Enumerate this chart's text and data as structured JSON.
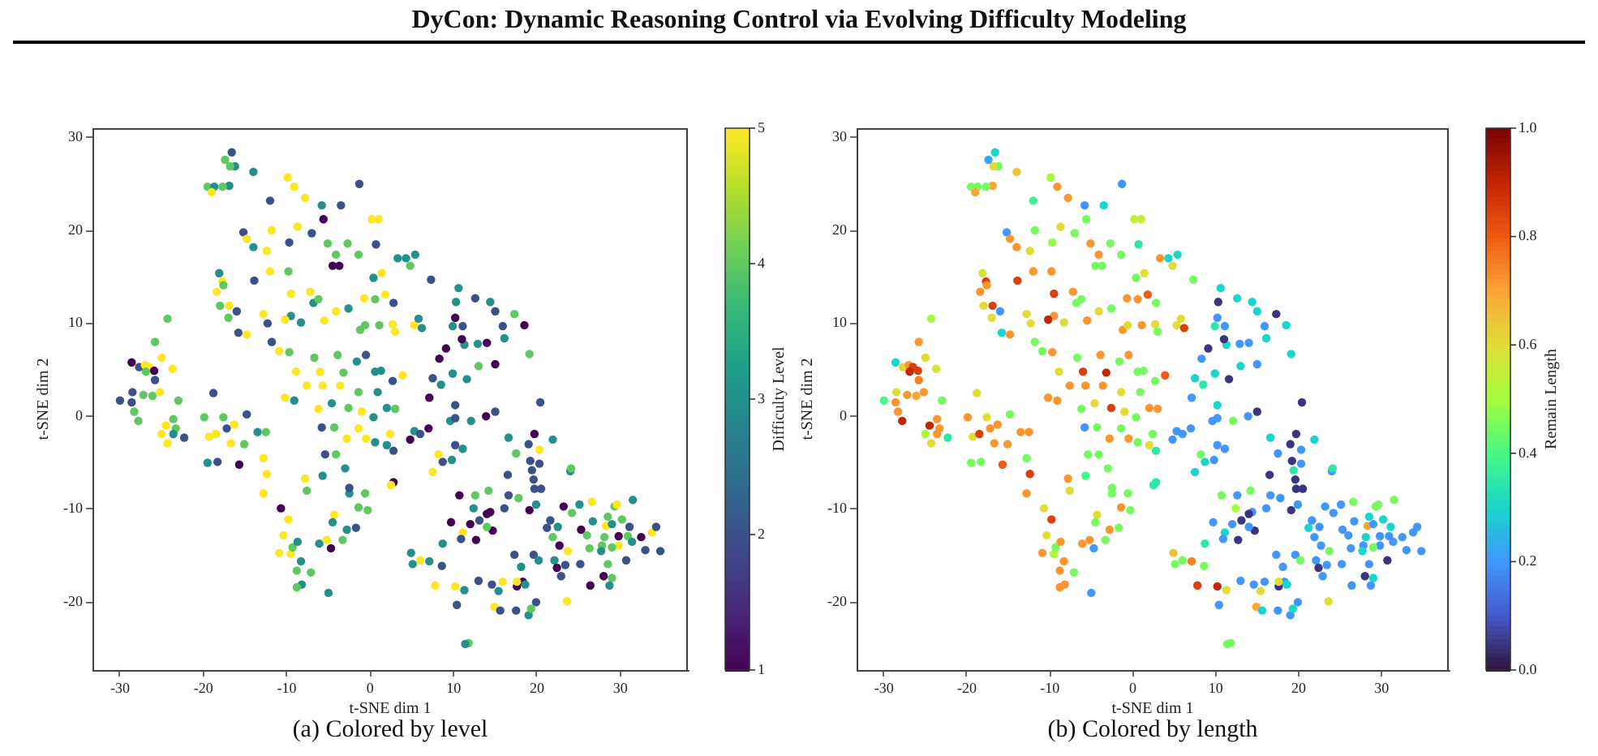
{
  "chart_data": [
    {
      "type": "scatter",
      "title": "DyCon: Dynamic Reasoning Control via Evolving Difficulty Modeling",
      "xlabel": "t-SNE dim 1",
      "ylabel": "t-SNE dim 2",
      "clabel": "Difficulty Level",
      "annotations": [
        "(a) Colored by level"
      ],
      "marker": "circle",
      "xlim": [
        -33.3,
        38.1
      ],
      "ylim": [
        -27.3,
        31.0
      ],
      "xticks": [
        -30,
        -20,
        -10,
        0,
        10,
        20,
        30
      ],
      "yticks": [
        -20,
        -10,
        0,
        10,
        20,
        30
      ],
      "clim": [
        1,
        5
      ],
      "cticks": [
        1,
        2,
        3,
        4,
        5
      ],
      "x": [
        -30.0,
        -28.6,
        -28.5,
        -28.6,
        -28.3,
        -27.7,
        -27.0,
        -26.5,
        -26.9,
        -25.9,
        -25.8,
        -27.8,
        -27.2,
        -26.1,
        -25.8,
        -25.0,
        -25.2,
        -24.3,
        -23.7,
        -23.0,
        -24.5,
        -25.0,
        -24.3,
        -23.6,
        -23.3,
        -22.3,
        -23.6,
        -16.6,
        -17.4,
        -16.2,
        -16.8,
        -14.0,
        -19.5,
        -18.7,
        -19.0,
        -16.9,
        -17.7,
        -12.0,
        -9.9,
        -7.8,
        -9.1,
        -1.3,
        -5.8,
        -3.5,
        -15.2,
        -14.8,
        -14.0,
        -11.8,
        -12.4,
        -12.0,
        -13.9,
        -18.1,
        -17.7,
        -18.4,
        -17.6,
        -18.0,
        -16.0,
        -16.9,
        -17.0,
        -15.8,
        -14.8,
        -12.3,
        -12.8,
        -8.7,
        -7.0,
        -5.6,
        0.2,
        1.0,
        -9.7,
        -5.1,
        -2.7,
        -4.1,
        -1.4,
        -4.5,
        -3.7,
        0.4,
        1.4,
        3.3,
        4.3,
        5.4,
        4.8,
        0.7,
        -9.8,
        -9.5,
        -7.2,
        -6.8,
        -6.2,
        -5.5,
        -4.1,
        -2.6,
        -0.7,
        0.6,
        1.8,
        2.8,
        -9.5,
        -8.3,
        -10.2,
        -1.2,
        -0.6,
        1.1,
        2.7,
        3.0,
        -10.9,
        -11.8,
        -9.7,
        -8.9,
        -6.7,
        -6.0,
        -3.9,
        -3.2,
        -1.6,
        -0.5,
        0.6,
        1.3,
        3.9,
        -10.2,
        -9.1,
        -7.6,
        -5.7,
        -3.6,
        -1.4,
        0.9,
        2.7,
        -6.2,
        -4.6,
        -2.6,
        -1.0,
        0.4,
        2.0,
        3.0,
        -19.9,
        -19.3,
        -19.5,
        -18.3,
        -18.8,
        -18.5,
        -17.6,
        -17.2,
        -16.3,
        -16.7,
        -15.7,
        -15.1,
        -14.8,
        -13.5,
        -12.5,
        -12.8,
        -12.4,
        -12.8,
        -10.7,
        -9.8,
        -10.4,
        -10.9,
        -9.5,
        -9.3,
        -8.7,
        -8.8,
        -8.2,
        -8.8,
        -7.1,
        -8.3,
        -5.8,
        -4.3,
        -2.8,
        -1.4,
        -0.5,
        0.6,
        2.4,
        2.0,
        2.8,
        -5.4,
        -4.1,
        -3.0,
        -5.7,
        -2.5,
        -2.5,
        -7.6,
        -7.8,
        -0.6,
        -1.4,
        -0.3,
        -4.3,
        -4.5,
        -2.8,
        -1.7,
        -6.1,
        -5.2,
        -4.7,
        -3.3,
        -5.0,
        2.8,
        2.5,
        5.3,
        5.8,
        6.2,
        7.3,
        10.6,
        10.3,
        9.9,
        11.1,
        10.2,
        12.6,
        11.3,
        11.0,
        12.9,
        14.0,
        14.4,
        15.0,
        15.9,
        16.1,
        17.3,
        18.5,
        19.1,
        15.0,
        13.0,
        9.9,
        11.6,
        8.3,
        9.1,
        7.5,
        7.1,
        8.5,
        10.2,
        9.6,
        10.2,
        12.1,
        13.9,
        15.0,
        20.4,
        5.3,
        7.0,
        6.0,
        4.8,
        10.2,
        11.1,
        8.2,
        8.7,
        9.8,
        7.5,
        16.6,
        19.7,
        19.0,
        20.3,
        21.9,
        17.5,
        19.2,
        20.3,
        16.5,
        19.4,
        19.6,
        19.7,
        20.5,
        24.0,
        24.1,
        10.7,
        12.6,
        14.2,
        16.6,
        17.8,
        12.4,
        14.4,
        16.1,
        19.1,
        19.9,
        9.7,
        12.0,
        13.1,
        14.0,
        14.7,
        11.1,
        14.0,
        10.9,
        12.7,
        8.7,
        8.6,
        7.8,
        6.0,
        4.9,
        5.1,
        7.1,
        10.2,
        10.4,
        11.3,
        13.0,
        14.6,
        14.9,
        15.4,
        15.9,
        15.6,
        11.8,
        11.4,
        17.3,
        18.1,
        17.6,
        18.3,
        17.6,
        18.6,
        17.5,
        19.0,
        19.3,
        19.9,
        19.6,
        20.2,
        21.2,
        21.6,
        21.9,
        22.5,
        22.1,
        22.4,
        22.9,
        23.4,
        22.7,
        23.7,
        23.2,
        24.2,
        25.3,
        25.1,
        26.0,
        26.6,
        26.7,
        26.4,
        25.2,
        23.6,
        27.8,
        27.7,
        28.1,
        28.3,
        28.5,
        29.0,
        29.3,
        29.6,
        30.2,
        31.1,
        29.8,
        30.9,
        31.4,
        29.8,
        29.0,
        28.5,
        30.7,
        29.0,
        28.0,
        28.7,
        31.5,
        32.5,
        33.8,
        34.3,
        33.0,
        34.8,
        26.3
      ],
      "values": [
        1.7,
        5.8,
        2.6,
        1.5,
        0.5,
        5.3,
        5.5,
        5.3,
        4.8,
        4.9,
        3.9,
        -0.5,
        2.3,
        2.2,
        8.0,
        6.3,
        2.6,
        10.5,
        5.1,
        1.7,
        -1.0,
        -1.9,
        -2.9,
        -0.3,
        -1.3,
        -2.3,
        -1.9,
        28.4,
        27.6,
        26.9,
        26.9,
        26.3,
        24.7,
        24.7,
        24.1,
        24.8,
        24.7,
        23.2,
        25.7,
        23.5,
        24.7,
        25.0,
        22.7,
        22.7,
        19.8,
        19.1,
        18.2,
        20.0,
        17.8,
        15.6,
        14.6,
        15.4,
        14.5,
        13.4,
        14.1,
        11.9,
        11.3,
        11.9,
        10.6,
        9.0,
        8.8,
        10.0,
        11.0,
        20.4,
        19.7,
        21.2,
        21.2,
        21.2,
        18.7,
        18.6,
        18.6,
        17.4,
        17.4,
        16.2,
        16.2,
        14.9,
        15.4,
        17.0,
        17.0,
        17.4,
        16.2,
        18.5,
        15.6,
        13.2,
        13.4,
        12.2,
        12.6,
        10.3,
        11.3,
        11.6,
        12.7,
        12.6,
        13.1,
        12.2,
        10.8,
        10.1,
        10.4,
        9.3,
        9.8,
        9.8,
        9.9,
        9.1,
        7.0,
        8.0,
        6.9,
        4.8,
        6.3,
        4.8,
        6.6,
        4.7,
        5.9,
        6.6,
        4.8,
        4.9,
        4.4,
        2.0,
        1.7,
        3.3,
        3.3,
        3.3,
        2.6,
        2.6,
        3.8,
        0.8,
        1.4,
        0.9,
        0.5,
        -0.1,
        0.9,
        0.8,
        -0.1,
        -2.2,
        -5.0,
        -4.9,
        2.5,
        -1.9,
        -0.1,
        -1.3,
        -0.9,
        -2.9,
        -5.2,
        -3.0,
        0.2,
        -1.7,
        -1.7,
        -4.5,
        -6.2,
        -8.3,
        -9.9,
        -11.1,
        -12.8,
        -14.7,
        -14.8,
        -14.1,
        -13.5,
        -16.6,
        -18.1,
        -18.4,
        -16.8,
        -15.6,
        -1.2,
        -1.2,
        -2.4,
        -1.3,
        -2.4,
        -2.8,
        -1.9,
        -3.1,
        -3.7,
        -4.1,
        -4.1,
        -5.6,
        -6.4,
        -8.3,
        -7.7,
        -8.0,
        -6.7,
        -8.3,
        -9.8,
        -10.1,
        -10.6,
        -11.4,
        -12.2,
        -12.0,
        -13.7,
        -13.3,
        -14.2,
        -13.3,
        -19.0,
        -7.1,
        -7.4,
        9.8,
        10.5,
        9.5,
        14.7,
        13.8,
        12.3,
        9.7,
        9.7,
        10.6,
        12.7,
        7.7,
        8.3,
        7.8,
        7.9,
        12.3,
        11.3,
        9.7,
        8.4,
        11.0,
        9.8,
        6.7,
        5.6,
        5.4,
        4.6,
        4.0,
        6.2,
        7.3,
        4.1,
        2.0,
        3.4,
        1.2,
        -0.5,
        -0.2,
        -0.5,
        0.0,
        0.5,
        1.5,
        -1.6,
        -1.3,
        -1.9,
        -2.5,
        -3.1,
        -3.5,
        -4.1,
        -4.9,
        -4.7,
        -6.0,
        -2.3,
        -1.9,
        -3.0,
        -3.6,
        -2.5,
        -4.0,
        -4.8,
        -5.1,
        -6.3,
        -5.8,
        -6.8,
        -7.8,
        -7.8,
        -5.9,
        -5.6,
        -8.5,
        -8.5,
        -8.0,
        -8.5,
        -8.8,
        -9.9,
        -10.3,
        -9.9,
        -10.1,
        -9.5,
        -11.4,
        -11.6,
        -11.2,
        -10.5,
        -12.3,
        -12.5,
        -11.9,
        -13.2,
        -13.3,
        -13.7,
        -16.1,
        -18.2,
        -15.5,
        -14.7,
        -15.9,
        -15.6,
        -18.3,
        -20.3,
        -18.7,
        -17.7,
        -18.1,
        -20.5,
        -18.8,
        -17.8,
        -20.9,
        -24.4,
        -24.5,
        -14.9,
        -16.2,
        -18.3,
        -17.8,
        -17.8,
        -18.1,
        -20.9,
        -21.4,
        -20.7,
        -20.0,
        -14.9,
        -15.5,
        -12.0,
        -11.2,
        -13.0,
        -11.9,
        -15.5,
        -16.3,
        -17.2,
        -16.0,
        -13.9,
        -14.5,
        -9.7,
        -10.4,
        -12.2,
        -9.5,
        -12.8,
        -9.2,
        -11.3,
        -18.2,
        -15.9,
        -19.9,
        -13.9,
        -14.5,
        -13.0,
        -11.8,
        -10.8,
        -11.6,
        -9.7,
        -9.5,
        -11.1,
        -11.9,
        -12.9,
        -12.9,
        -13.5,
        -13.9,
        -14.1,
        -15.9,
        -15.5,
        -17.4,
        -17.2,
        -18.2,
        -9.0,
        -13.0,
        -12.5,
        -11.9,
        -14.4,
        -14.5,
        -14.2
      ],
      "cvalues": [
        2,
        1,
        2,
        2,
        4,
        2,
        5,
        5,
        4,
        1,
        2,
        4,
        4,
        4,
        4,
        5,
        5,
        4,
        5,
        4,
        5,
        5,
        5,
        4,
        4,
        2,
        3,
        2,
        4,
        3,
        4,
        3,
        4,
        3,
        5,
        3,
        4,
        2,
        5,
        5,
        5,
        2,
        3,
        2,
        2,
        5,
        3,
        5,
        5,
        5,
        2,
        3,
        5,
        5,
        4,
        4,
        2,
        5,
        4,
        2,
        5,
        2,
        5,
        5,
        2,
        1,
        5,
        5,
        2,
        4,
        4,
        4,
        4,
        1,
        1,
        3,
        5,
        3,
        3,
        3,
        4,
        2,
        4,
        5,
        5,
        3,
        4,
        5,
        5,
        3,
        5,
        4,
        5,
        2,
        3,
        3,
        5,
        4,
        4,
        4,
        5,
        5,
        5,
        2,
        4,
        5,
        4,
        5,
        4,
        4,
        3,
        2,
        3,
        3,
        5,
        5,
        3,
        5,
        5,
        5,
        4,
        3,
        2,
        5,
        3,
        4,
        5,
        3,
        3,
        4,
        4,
        5,
        3,
        2,
        2,
        5,
        4,
        2,
        5,
        5,
        1,
        4,
        2,
        3,
        4,
        5,
        5,
        5,
        1,
        5,
        5,
        5,
        5,
        4,
        3,
        4,
        3,
        4,
        4,
        3,
        2,
        4,
        5,
        5,
        5,
        3,
        5,
        3,
        2,
        2,
        4,
        3,
        3,
        3,
        2,
        4,
        5,
        4,
        4,
        4,
        5,
        3,
        3,
        2,
        3,
        5,
        1,
        4,
        3,
        1,
        5,
        5,
        3,
        3,
        2,
        3,
        3,
        3,
        2,
        1,
        2,
        3,
        1,
        3,
        1,
        3,
        2,
        2,
        3,
        4,
        1,
        4,
        1,
        4,
        3,
        3,
        1,
        1,
        2,
        1,
        3,
        2,
        3,
        2,
        3,
        1,
        2,
        2,
        3,
        1,
        2,
        1,
        2,
        3,
        5,
        2,
        3,
        5,
        3,
        1,
        2,
        5,
        3,
        4,
        2,
        2,
        2,
        2,
        2,
        2,
        2,
        3,
        4,
        1,
        4,
        4,
        2,
        4,
        3,
        1,
        2,
        1,
        3,
        1,
        1,
        2,
        1,
        1,
        5,
        4,
        2,
        1,
        3,
        2,
        5,
        5,
        3,
        3,
        3,
        5,
        2,
        3,
        2,
        2,
        5,
        3,
        5,
        2,
        4,
        3,
        2,
        3,
        1,
        1,
        5,
        3,
        2,
        3,
        4,
        2,
        2,
        3,
        2,
        2,
        4,
        3,
        3,
        1,
        2,
        2,
        1,
        5,
        1,
        4,
        1,
        3,
        4,
        5,
        3,
        1,
        2,
        5,
        4,
        3,
        4,
        5,
        4,
        3,
        4,
        5,
        4,
        2,
        1,
        4,
        3,
        5,
        4,
        4,
        2,
        4,
        1,
        3,
        3,
        1,
        5,
        2,
        2,
        2,
        4
      ]
    },
    {
      "type": "scatter",
      "xlabel": "t-SNE dim 1",
      "ylabel": "t-SNE dim 2",
      "clabel": "Remain Length",
      "annotations": [
        "(b) Colored by length"
      ],
      "marker": "circle",
      "xlim": [
        -33.3,
        38.1
      ],
      "ylim": [
        -27.3,
        31.0
      ],
      "xticks": [
        -30,
        -20,
        -10,
        0,
        10,
        20,
        30
      ],
      "yticks": [
        -20,
        -10,
        0,
        10,
        20,
        30
      ],
      "clim": [
        0,
        1
      ],
      "cticks": [
        {
          "value": 0,
          "label": "0.0"
        },
        {
          "value": 0.2,
          "label": "0.2"
        },
        {
          "value": 0.4,
          "label": "0.4"
        },
        {
          "value": 0.6,
          "label": "0.6"
        },
        {
          "value": 0.8,
          "label": "0.8"
        },
        {
          "value": 1,
          "label": "1.0"
        }
      ],
      "x": [
        -30.0,
        -28.6,
        -28.5,
        -28.6,
        -28.3,
        -27.7,
        -27.0,
        -26.5,
        -26.9,
        -25.9,
        -25.8,
        -27.8,
        -27.2,
        -26.1,
        -25.8,
        -25.0,
        -25.2,
        -24.3,
        -23.7,
        -23.0,
        -24.5,
        -25.0,
        -24.3,
        -23.6,
        -23.3,
        -22.3,
        -23.6,
        -16.6,
        -17.4,
        -16.2,
        -16.8,
        -14.0,
        -19.5,
        -18.7,
        -19.0,
        -16.9,
        -17.7,
        -12.0,
        -9.9,
        -7.8,
        -9.1,
        -1.3,
        -5.8,
        -3.5,
        -15.2,
        -14.8,
        -14.0,
        -11.8,
        -12.4,
        -12.0,
        -13.9,
        -18.1,
        -17.7,
        -18.4,
        -17.6,
        -18.0,
        -16.0,
        -16.9,
        -17.0,
        -15.8,
        -14.8,
        -12.3,
        -12.8,
        -8.7,
        -7.0,
        -5.6,
        0.2,
        1.0,
        -9.7,
        -5.1,
        -2.7,
        -4.1,
        -1.4,
        -4.5,
        -3.7,
        0.4,
        1.4,
        3.3,
        4.3,
        5.4,
        4.8,
        0.7,
        -9.8,
        -9.5,
        -7.2,
        -6.8,
        -6.2,
        -5.5,
        -4.1,
        -2.6,
        -0.7,
        0.6,
        1.8,
        2.8,
        -9.5,
        -8.3,
        -10.2,
        -1.2,
        -0.6,
        1.1,
        2.7,
        3.0,
        -10.9,
        -11.8,
        -9.7,
        -8.9,
        -6.7,
        -6.0,
        -3.9,
        -3.2,
        -1.6,
        -0.5,
        0.6,
        1.3,
        3.9,
        -10.2,
        -9.1,
        -7.6,
        -5.7,
        -3.6,
        -1.4,
        0.9,
        2.7,
        -6.2,
        -4.6,
        -2.6,
        -1.0,
        0.4,
        2.0,
        3.0,
        -19.9,
        -19.3,
        -19.5,
        -18.3,
        -18.8,
        -18.5,
        -17.6,
        -17.2,
        -16.3,
        -16.7,
        -15.7,
        -15.1,
        -14.8,
        -13.5,
        -12.5,
        -12.8,
        -12.4,
        -12.8,
        -10.7,
        -9.8,
        -10.4,
        -10.9,
        -9.5,
        -9.3,
        -8.7,
        -8.8,
        -8.2,
        -8.8,
        -7.1,
        -8.3,
        -5.8,
        -4.3,
        -2.8,
        -1.4,
        -0.5,
        0.6,
        2.4,
        2.0,
        2.8,
        -5.4,
        -4.1,
        -3.0,
        -5.7,
        -2.5,
        -2.5,
        -7.6,
        -7.8,
        -0.6,
        -1.4,
        -0.3,
        -4.3,
        -4.5,
        -2.8,
        -1.7,
        -6.1,
        -5.2,
        -4.7,
        -3.3,
        -5.0,
        2.8,
        2.5,
        5.3,
        5.8,
        6.2,
        7.3,
        10.6,
        10.3,
        9.9,
        11.1,
        10.2,
        12.6,
        11.3,
        11.0,
        12.9,
        14.0,
        14.4,
        15.0,
        15.9,
        16.1,
        17.3,
        18.5,
        19.1,
        15.0,
        13.0,
        9.9,
        11.6,
        8.3,
        9.1,
        7.5,
        7.1,
        8.5,
        10.2,
        9.6,
        10.2,
        12.1,
        13.9,
        15.0,
        20.4,
        5.3,
        7.0,
        6.0,
        4.8,
        10.2,
        11.1,
        8.2,
        8.7,
        9.8,
        7.5,
        16.6,
        19.7,
        19.0,
        20.3,
        21.9,
        17.5,
        19.2,
        20.3,
        16.5,
        19.4,
        19.6,
        19.7,
        20.5,
        24.0,
        24.1,
        10.7,
        12.6,
        14.2,
        16.6,
        17.8,
        12.4,
        14.4,
        16.1,
        19.1,
        19.9,
        9.7,
        12.0,
        13.1,
        14.0,
        14.7,
        11.1,
        14.0,
        10.9,
        12.7,
        8.7,
        8.6,
        7.8,
        6.0,
        4.9,
        5.1,
        7.1,
        10.2,
        10.4,
        11.3,
        13.0,
        14.6,
        14.9,
        15.4,
        15.9,
        15.6,
        11.8,
        11.4,
        17.3,
        18.1,
        17.6,
        18.3,
        17.6,
        18.6,
        17.5,
        19.0,
        19.3,
        19.9,
        19.6,
        20.2,
        21.2,
        21.6,
        21.9,
        22.5,
        22.1,
        22.4,
        22.9,
        23.4,
        22.7,
        23.7,
        23.2,
        24.2,
        25.3,
        25.1,
        26.0,
        26.6,
        26.7,
        26.4,
        25.2,
        23.6,
        27.8,
        27.7,
        28.1,
        28.3,
        28.5,
        29.0,
        29.3,
        29.6,
        30.2,
        31.1,
        29.8,
        30.9,
        31.4,
        29.8,
        29.0,
        28.5,
        30.7,
        29.0,
        28.0,
        28.7,
        31.5,
        32.5,
        33.8,
        34.3,
        33.0,
        34.8,
        26.3
      ],
      "values": [
        1.7,
        5.8,
        2.6,
        1.5,
        0.5,
        5.3,
        5.5,
        5.3,
        4.8,
        4.9,
        3.9,
        -0.5,
        2.3,
        2.2,
        8.0,
        6.3,
        2.6,
        10.5,
        5.1,
        1.7,
        -1.0,
        -1.9,
        -2.9,
        -0.3,
        -1.3,
        -2.3,
        -1.9,
        28.4,
        27.6,
        26.9,
        26.9,
        26.3,
        24.7,
        24.7,
        24.1,
        24.8,
        24.7,
        23.2,
        25.7,
        23.5,
        24.7,
        25.0,
        22.7,
        22.7,
        19.8,
        19.1,
        18.2,
        20.0,
        17.8,
        15.6,
        14.6,
        15.4,
        14.5,
        13.4,
        14.1,
        11.9,
        11.3,
        11.9,
        10.6,
        9.0,
        8.8,
        10.0,
        11.0,
        20.4,
        19.7,
        21.2,
        21.2,
        21.2,
        18.7,
        18.6,
        18.6,
        17.4,
        17.4,
        16.2,
        16.2,
        14.9,
        15.4,
        17.0,
        17.0,
        17.4,
        16.2,
        18.5,
        15.6,
        13.2,
        13.4,
        12.2,
        12.6,
        10.3,
        11.3,
        11.6,
        12.7,
        12.6,
        13.1,
        12.2,
        10.8,
        10.1,
        10.4,
        9.3,
        9.8,
        9.8,
        9.9,
        9.1,
        7.0,
        8.0,
        6.9,
        4.8,
        6.3,
        4.8,
        6.6,
        4.7,
        5.9,
        6.6,
        4.8,
        4.9,
        4.4,
        2.0,
        1.7,
        3.3,
        3.3,
        3.3,
        2.6,
        2.6,
        3.8,
        0.8,
        1.4,
        0.9,
        0.5,
        -0.1,
        0.9,
        0.8,
        -0.1,
        -2.2,
        -5.0,
        -4.9,
        2.5,
        -1.9,
        -0.1,
        -1.3,
        -0.9,
        -2.9,
        -5.2,
        -3.0,
        0.2,
        -1.7,
        -1.7,
        -4.5,
        -6.2,
        -8.3,
        -9.9,
        -11.1,
        -12.8,
        -14.7,
        -14.8,
        -14.1,
        -13.5,
        -16.6,
        -18.1,
        -18.4,
        -16.8,
        -15.6,
        -1.2,
        -1.2,
        -2.4,
        -1.3,
        -2.4,
        -2.8,
        -1.9,
        -3.1,
        -3.7,
        -4.1,
        -4.1,
        -5.6,
        -6.4,
        -8.3,
        -7.7,
        -8.0,
        -6.7,
        -8.3,
        -9.8,
        -10.1,
        -10.6,
        -11.4,
        -12.2,
        -12.0,
        -13.7,
        -13.3,
        -14.2,
        -13.3,
        -19.0,
        -7.1,
        -7.4,
        9.8,
        10.5,
        9.5,
        14.7,
        13.8,
        12.3,
        9.7,
        9.7,
        10.6,
        12.7,
        7.7,
        8.3,
        7.8,
        7.9,
        12.3,
        11.3,
        9.7,
        8.4,
        11.0,
        9.8,
        6.7,
        5.6,
        5.4,
        4.6,
        4.0,
        6.2,
        7.3,
        4.1,
        2.0,
        3.4,
        1.2,
        -0.5,
        -0.2,
        -0.5,
        0.0,
        0.5,
        1.5,
        -1.6,
        -1.3,
        -1.9,
        -2.5,
        -3.1,
        -3.5,
        -4.1,
        -4.9,
        -4.7,
        -6.0,
        -2.3,
        -1.9,
        -3.0,
        -3.6,
        -2.5,
        -4.0,
        -4.8,
        -5.1,
        -6.3,
        -5.8,
        -6.8,
        -7.8,
        -7.8,
        -5.9,
        -5.6,
        -8.5,
        -8.5,
        -8.0,
        -8.5,
        -8.8,
        -9.9,
        -10.3,
        -9.9,
        -10.1,
        -9.5,
        -11.4,
        -11.6,
        -11.2,
        -10.5,
        -12.3,
        -12.5,
        -11.9,
        -13.2,
        -13.3,
        -13.7,
        -16.1,
        -18.2,
        -15.5,
        -14.7,
        -15.9,
        -15.6,
        -18.3,
        -20.3,
        -18.7,
        -17.7,
        -18.1,
        -20.5,
        -18.8,
        -17.8,
        -20.9,
        -24.4,
        -24.5,
        -14.9,
        -16.2,
        -18.3,
        -17.8,
        -17.8,
        -18.1,
        -20.9,
        -21.4,
        -20.7,
        -20.0,
        -14.9,
        -15.5,
        -12.0,
        -11.2,
        -13.0,
        -11.9,
        -15.5,
        -16.3,
        -17.2,
        -16.0,
        -13.9,
        -14.5,
        -9.7,
        -10.4,
        -12.2,
        -9.5,
        -12.8,
        -9.2,
        -11.3,
        -18.2,
        -15.9,
        -19.9,
        -13.9,
        -14.5,
        -13.0,
        -11.8,
        -10.8,
        -11.6,
        -9.7,
        -9.5,
        -11.1,
        -11.9,
        -12.9,
        -12.9,
        -13.5,
        -13.9,
        -14.1,
        -15.9,
        -15.5,
        -17.4,
        -17.2,
        -18.2,
        -9.0,
        -13.0,
        -12.5,
        -11.9,
        -14.4,
        -14.5,
        -14.2
      ],
      "cvalues": [
        0.4,
        0.3,
        0.6,
        0.72,
        0.72,
        0.62,
        0.72,
        0.85,
        0.9,
        0.85,
        0.75,
        0.9,
        0.72,
        0.7,
        0.72,
        0.6,
        0.72,
        0.5,
        0.58,
        0.45,
        0.9,
        0.52,
        0.6,
        0.72,
        0.72,
        0.35,
        0.72,
        0.3,
        0.22,
        0.45,
        0.6,
        0.65,
        0.45,
        0.45,
        0.7,
        0.7,
        0.45,
        0.38,
        0.5,
        0.72,
        0.72,
        0.2,
        0.2,
        0.3,
        0.2,
        0.72,
        0.72,
        0.45,
        0.6,
        0.72,
        0.85,
        0.58,
        0.85,
        0.72,
        0.72,
        0.6,
        0.2,
        0.85,
        0.6,
        0.3,
        0.72,
        0.6,
        0.6,
        0.6,
        0.45,
        0.45,
        0.55,
        0.55,
        0.48,
        0.72,
        0.45,
        0.72,
        0.45,
        0.45,
        0.45,
        0.45,
        0.6,
        0.72,
        0.3,
        0.3,
        0.6,
        0.35,
        0.72,
        0.85,
        0.72,
        0.45,
        0.45,
        0.72,
        0.6,
        0.45,
        0.72,
        0.72,
        0.8,
        0.45,
        0.72,
        0.6,
        0.9,
        0.72,
        0.6,
        0.72,
        0.6,
        0.45,
        0.45,
        0.45,
        0.72,
        0.6,
        0.45,
        0.85,
        0.72,
        0.9,
        0.45,
        0.72,
        0.45,
        0.45,
        0.8,
        0.72,
        0.72,
        0.72,
        0.72,
        0.72,
        0.6,
        0.45,
        0.45,
        0.45,
        0.6,
        0.85,
        0.6,
        0.45,
        0.72,
        0.72,
        0.72,
        0.6,
        0.45,
        0.45,
        0.6,
        0.85,
        0.6,
        0.72,
        0.72,
        0.72,
        0.8,
        0.72,
        0.45,
        0.72,
        0.72,
        0.45,
        0.85,
        0.72,
        0.6,
        0.85,
        0.6,
        0.72,
        0.52,
        0.45,
        0.72,
        0.72,
        0.72,
        0.72,
        0.45,
        0.72,
        0.2,
        0.45,
        0.72,
        0.45,
        0.72,
        0.45,
        0.45,
        0.6,
        0.35,
        0.45,
        0.45,
        0.45,
        0.4,
        0.45,
        0.45,
        0.6,
        0.72,
        0.45,
        0.72,
        0.45,
        0.6,
        0.45,
        0.72,
        0.45,
        0.72,
        0.72,
        0.2,
        0.45,
        0.2,
        0.35,
        0.35,
        0.6,
        0.6,
        0.85,
        0.45,
        0.3,
        0.05,
        0.35,
        0.2,
        0.2,
        0.3,
        0.3,
        0.05,
        0.2,
        0.2,
        0.3,
        0.3,
        0.2,
        0.3,
        0.05,
        0.3,
        0.3,
        0.2,
        0.3,
        0.3,
        0.05,
        0.2,
        0.05,
        0.3,
        0.2,
        0.35,
        0.3,
        0.2,
        0.2,
        0.45,
        0.2,
        0.05,
        0.05,
        0.2,
        0.2,
        0.2,
        0.2,
        0.2,
        0.2,
        0.45,
        0.3,
        0.2,
        0.3,
        0.3,
        0.05,
        0.05,
        0.2,
        0.3,
        0.2,
        0.05,
        0.2,
        0.05,
        0.35,
        0.05,
        0.05,
        0.05,
        0.2,
        0.35,
        0.45,
        0.2,
        0.45,
        0.2,
        0.2,
        0.5,
        0.2,
        0.2,
        0.05,
        0.2,
        0.2,
        0.2,
        0.05,
        0.05,
        0.05,
        0.3,
        0.2,
        0.2,
        0.05,
        0.35,
        0.45,
        0.85,
        0.45,
        0.65,
        0.45,
        0.75,
        0.9,
        0.2,
        0.6,
        0.2,
        0.2,
        0.7,
        0.6,
        0.2,
        0.3,
        0.45,
        0.45,
        0.2,
        0.2,
        0.05,
        0.2,
        0.6,
        0.3,
        0.2,
        0.2,
        0.3,
        0.2,
        0.2,
        0.45,
        0.3,
        0.2,
        0.2,
        0.2,
        0.2,
        0.05,
        0.2,
        0.2,
        0.2,
        0.45,
        0.2,
        0.2,
        0.2,
        0.2,
        0.2,
        0.45,
        0.2,
        0.2,
        0.2,
        0.6,
        0.2,
        0.3,
        0.3,
        0.7,
        0.3,
        0.2,
        0.45,
        0.45,
        0.3,
        0.3,
        0.2,
        0.2,
        0.2,
        0.2,
        0.45,
        0.2,
        0.05,
        0.3,
        0.05,
        0.2,
        0.45,
        0.2,
        0.2,
        0.2,
        0.2,
        0.2,
        0.2
      ]
    }
  ]
}
